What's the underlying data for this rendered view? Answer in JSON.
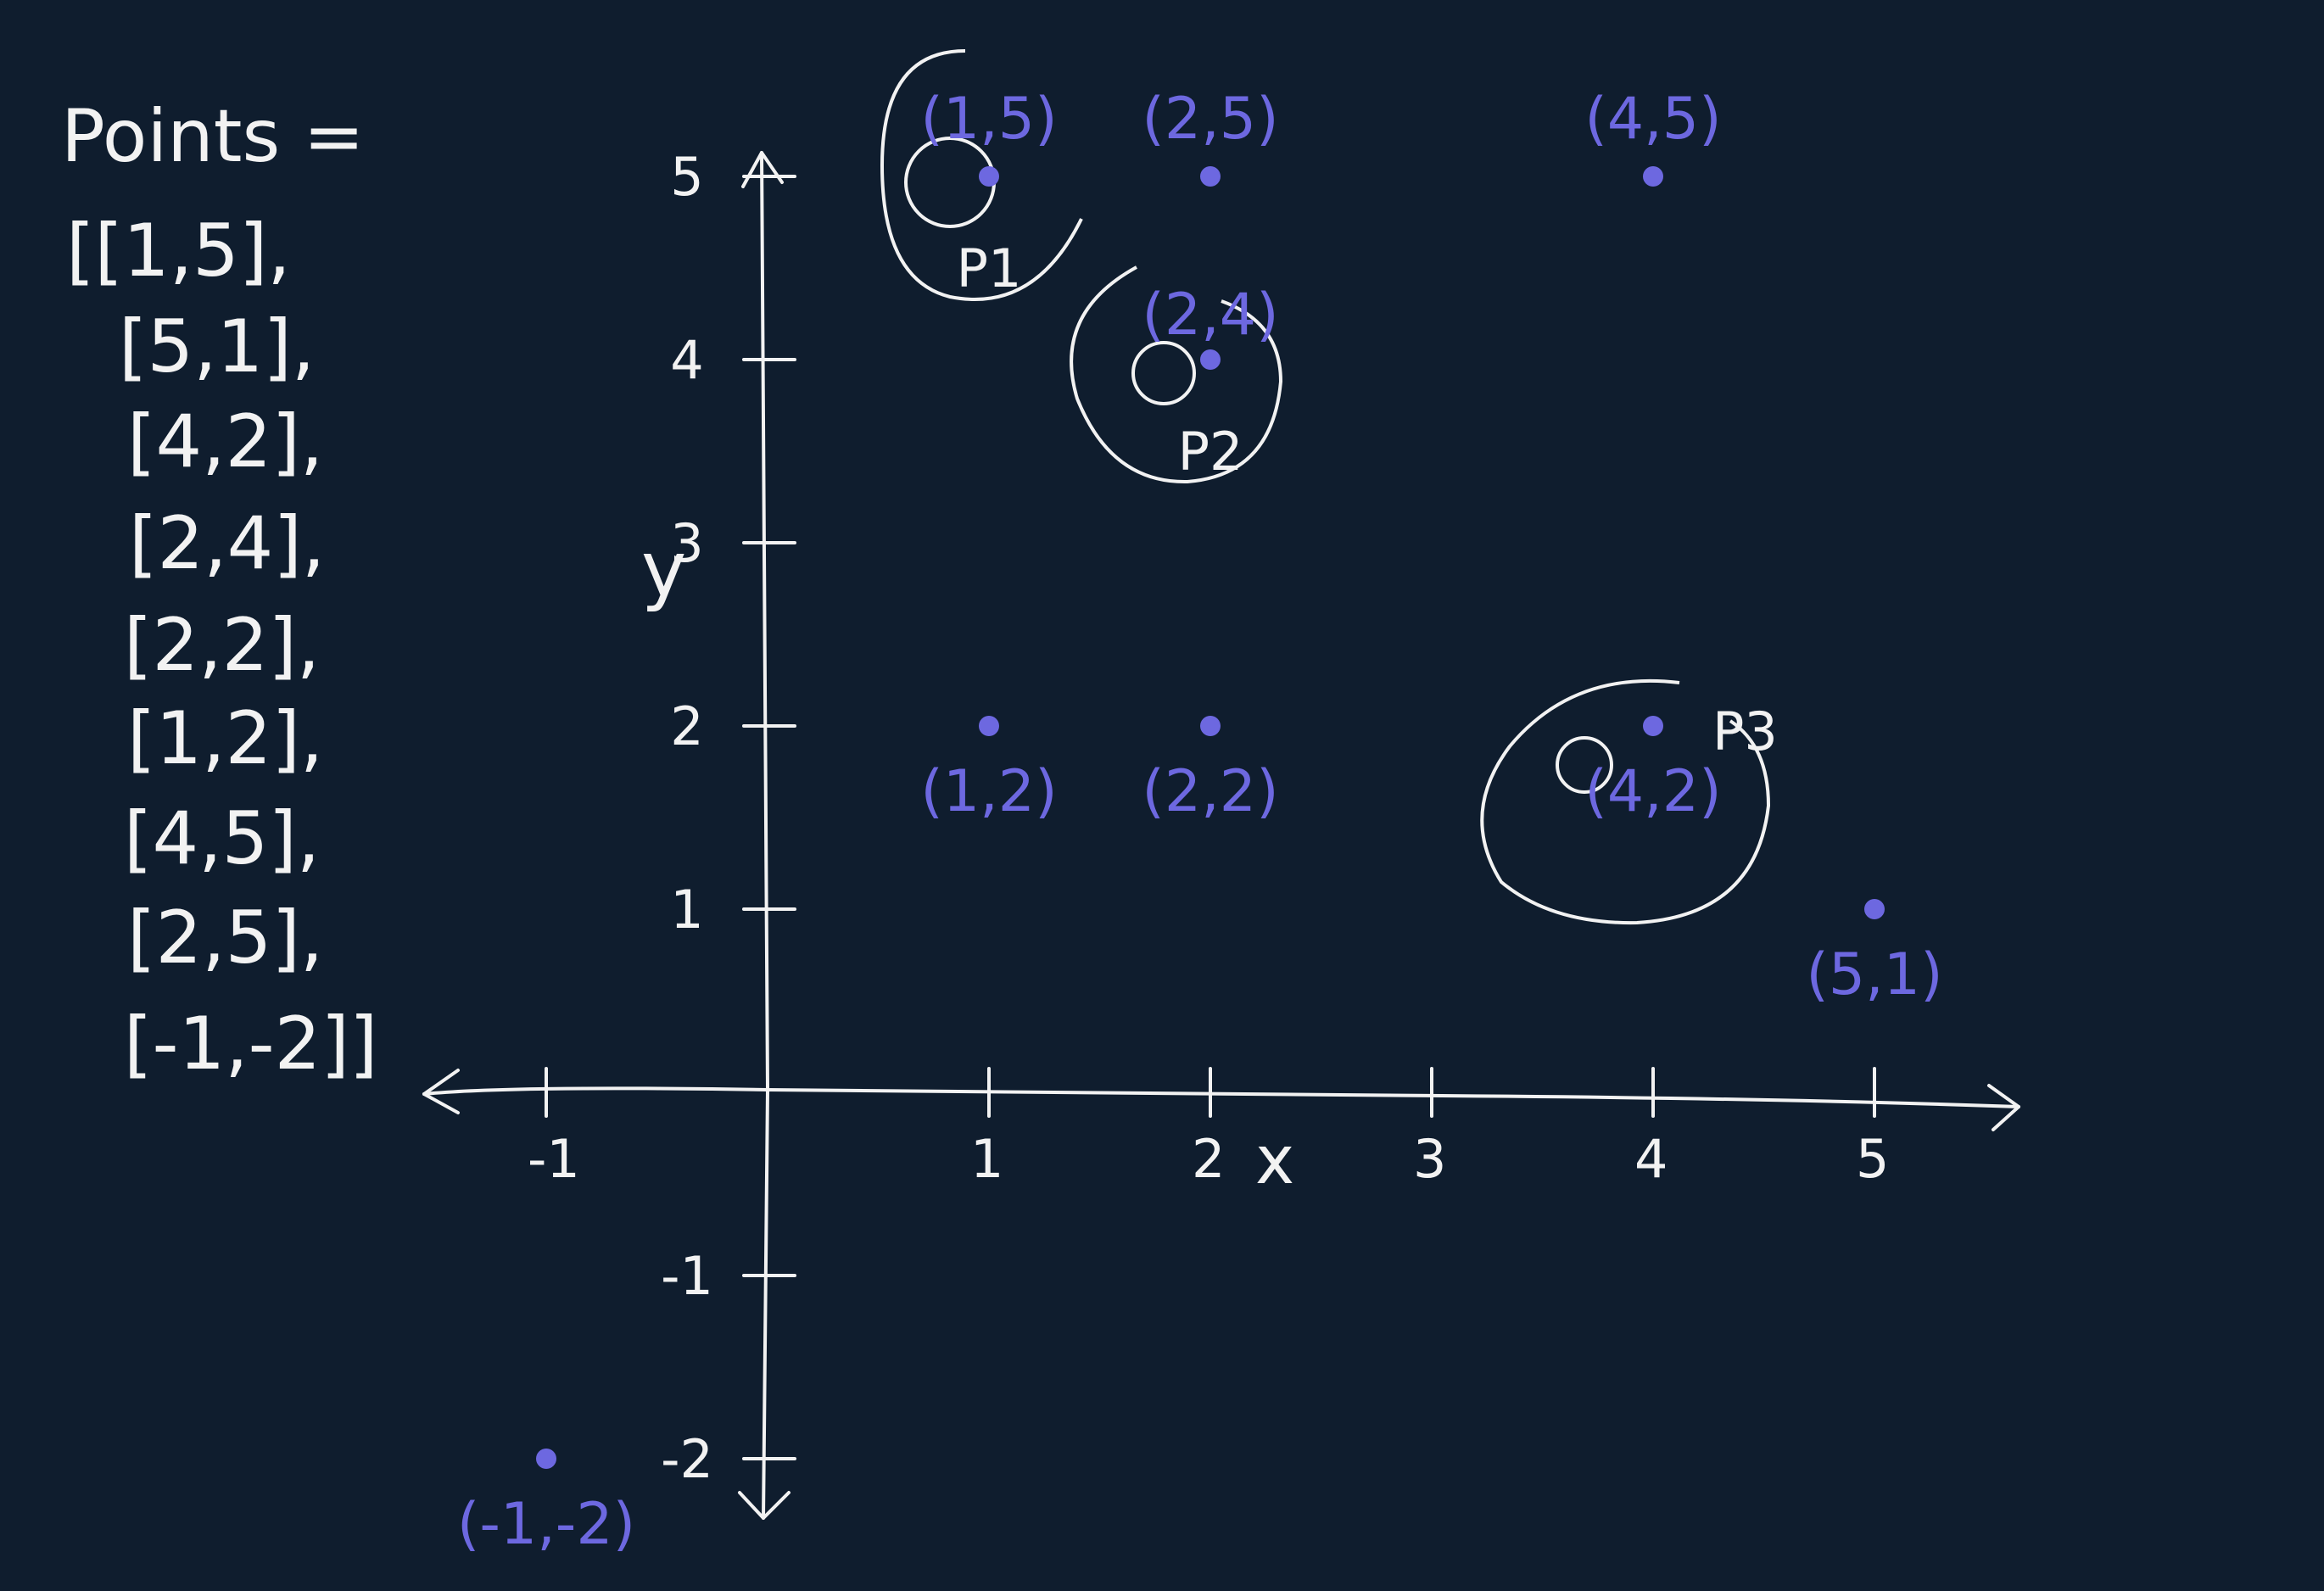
{
  "points_list": {
    "heading": "Points =",
    "rows": [
      "[[1,5],",
      "[5,1],",
      "[4,2],",
      "[2,4],",
      "[2,2],",
      "[1,2],",
      "[4,5],",
      "[2,5],",
      "[-1,-2]]"
    ]
  },
  "axes": {
    "x_label": "x",
    "y_label": "y",
    "x_ticks": [
      {
        "value": -1,
        "label": "-1"
      },
      {
        "value": 1,
        "label": "1"
      },
      {
        "value": 2,
        "label": "2"
      },
      {
        "value": 3,
        "label": "3"
      },
      {
        "value": 4,
        "label": "4"
      },
      {
        "value": 5,
        "label": "5"
      }
    ],
    "y_ticks": [
      {
        "value": 5,
        "label": "5"
      },
      {
        "value": 4,
        "label": "4"
      },
      {
        "value": 3,
        "label": "3"
      },
      {
        "value": 2,
        "label": "2"
      },
      {
        "value": 1,
        "label": "1"
      },
      {
        "value": -1,
        "label": "-1"
      },
      {
        "value": -2,
        "label": "-2"
      }
    ]
  },
  "points": [
    {
      "x": 1,
      "y": 5,
      "label": "(1,5)",
      "circled": true,
      "tag": "P1"
    },
    {
      "x": 2,
      "y": 5,
      "label": "(2,5)",
      "circled": false,
      "tag": ""
    },
    {
      "x": 4,
      "y": 5,
      "label": "(4,5)",
      "circled": false,
      "tag": ""
    },
    {
      "x": 2,
      "y": 4,
      "label": "(2,4)",
      "circled": true,
      "tag": "P2"
    },
    {
      "x": 1,
      "y": 2,
      "label": "(1,2)",
      "circled": false,
      "tag": ""
    },
    {
      "x": 2,
      "y": 2,
      "label": "(2,2)",
      "circled": false,
      "tag": ""
    },
    {
      "x": 4,
      "y": 2,
      "label": "(4,2)",
      "circled": true,
      "tag": "P3"
    },
    {
      "x": 5,
      "y": 1,
      "label": "(5,1)",
      "circled": false,
      "tag": ""
    },
    {
      "x": -1,
      "y": -2,
      "label": "(-1,-2)",
      "circled": false,
      "tag": ""
    }
  ],
  "colors": {
    "background": "#0f1d2e",
    "chalk": "#f2f2f2",
    "point": "#6d68e0"
  }
}
